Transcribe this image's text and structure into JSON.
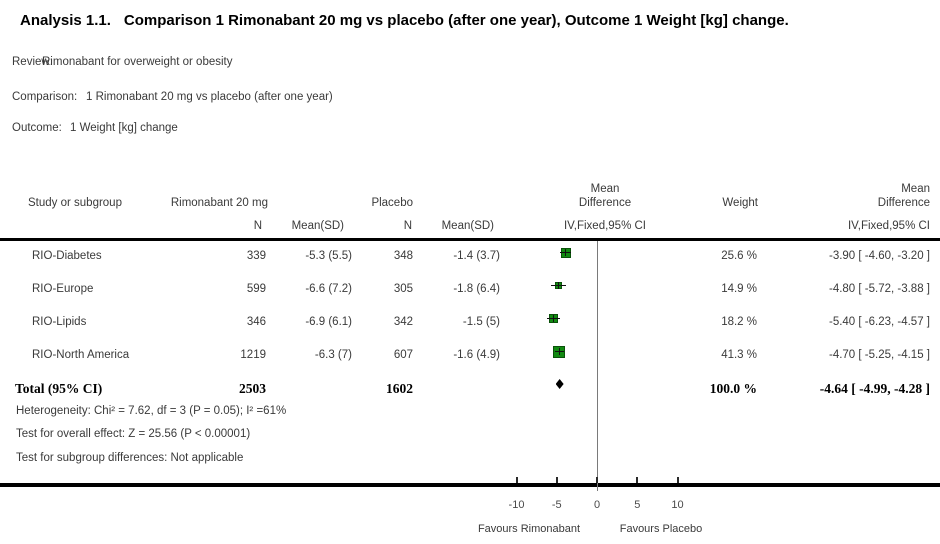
{
  "title": {
    "analysis_label": "Analysis 1.1.",
    "text": "Comparison 1 Rimonabant 20 mg vs placebo (after one year), Outcome 1 Weight [kg] change."
  },
  "meta": {
    "review_label": "Review:",
    "review": "Rimonabant for overweight or obesity",
    "comparison_label": "Comparison:",
    "comparison": "1 Rimonabant 20 mg vs placebo (after one year)",
    "outcome_label": "Outcome:",
    "outcome": "1 Weight [kg] change"
  },
  "table": {
    "headers": {
      "study": "Study or subgroup",
      "group1": "Rimonabant 20 mg",
      "group2": "Placebo",
      "n1": "N",
      "mean_sd1": "Mean(SD)",
      "n2": "N",
      "mean_sd2": "Mean(SD)",
      "mean_difference": "Mean\nDifference",
      "ci_method_plot": "IV,Fixed,95% CI",
      "weight": "Weight",
      "ci_method_text": "IV,Fixed,95% CI"
    },
    "total": {
      "label": "Total (95% CI)",
      "n1": "2503",
      "n2": "1602",
      "weight": "100.0 %",
      "ci_text": "-4.64 [ -4.99, -4.28 ]"
    },
    "footnotes": [
      "Heterogeneity: Chi² = 7.62, df = 3 (P = 0.05); I² =61%",
      "Test for overall effect: Z = 25.56 (P < 0.00001)",
      "Test for subgroup differences: Not applicable"
    ]
  },
  "chart_data": {
    "type": "forest",
    "effect_measure": "Mean Difference IV,Fixed,95% CI",
    "rows": [
      {
        "study": "RIO-Diabetes",
        "n1": "339",
        "mean_sd1": "-5.3 (5.5)",
        "n2": "348",
        "mean_sd2": "-1.4 (3.7)",
        "weight": "25.6 %",
        "md": -3.9,
        "ci_low": -4.6,
        "ci_high": -3.2,
        "ci_text": "-3.90 [ -4.60, -3.20 ]"
      },
      {
        "study": "RIO-Europe",
        "n1": "599",
        "mean_sd1": "-6.6 (7.2)",
        "n2": "305",
        "mean_sd2": "-1.8 (6.4)",
        "weight": "14.9 %",
        "md": -4.8,
        "ci_low": -5.72,
        "ci_high": -3.88,
        "ci_text": "-4.80 [ -5.72, -3.88 ]"
      },
      {
        "study": "RIO-Lipids",
        "n1": "346",
        "mean_sd1": "-6.9 (6.1)",
        "n2": "342",
        "mean_sd2": "-1.5 (5)",
        "weight": "18.2 %",
        "md": -5.4,
        "ci_low": -6.23,
        "ci_high": -4.57,
        "ci_text": "-5.40 [ -6.23, -4.57 ]"
      },
      {
        "study": "RIO-North America",
        "n1": "1219",
        "mean_sd1": "-6.3 (7)",
        "n2": "607",
        "mean_sd2": "-1.6 (4.9)",
        "weight": "41.3 %",
        "md": -4.7,
        "ci_low": -5.25,
        "ci_high": -4.15,
        "ci_text": "-4.70 [ -5.25, -4.15 ]"
      }
    ],
    "total": {
      "md": -4.64,
      "ci_low": -4.99,
      "ci_high": -4.28
    },
    "axis": {
      "ticks": [
        -10,
        -5,
        0,
        5,
        10
      ],
      "left_label": "Favours Rimonabant",
      "right_label": "Favours Placebo"
    },
    "marker_fill": "#118a11",
    "marker_border": "#0a520a",
    "marker_sizes": [
      10,
      7,
      9,
      12
    ]
  }
}
